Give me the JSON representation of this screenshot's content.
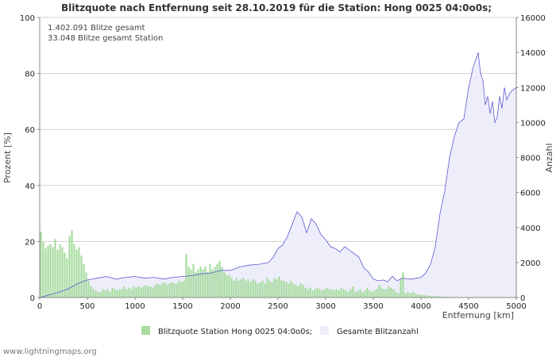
{
  "chart_data": {
    "type": "bar+area",
    "title": "Blitzquote nach Entfernung seit 28.10.2019 für die Station: Hong 0025 04:0o0s;",
    "info_lines": [
      "1.402.091 Blitze gesamt",
      "33.048 Blitze gesamt Station"
    ],
    "xlabel": "Entfernung   [km]",
    "ylabel_left": "Prozent   [%]",
    "ylabel_right": "Anzahl",
    "xlim": [
      0,
      5000
    ],
    "ylim_left": [
      0,
      100
    ],
    "ylim_right": [
      0,
      16000
    ],
    "x_ticks": [
      0,
      500,
      1000,
      1500,
      2000,
      2500,
      3000,
      3500,
      4000,
      4500,
      5000
    ],
    "y_left_ticks": [
      0,
      20,
      40,
      60,
      80,
      100
    ],
    "y_right_ticks": [
      0,
      2000,
      4000,
      6000,
      8000,
      10000,
      12000,
      14000,
      16000
    ],
    "bar_series": {
      "name": "Blitzquote Station Hong 0025 04:0o0s;",
      "color": "#a8dca0",
      "bin_km": 25,
      "values": [
        23.5,
        20,
        17.5,
        18.5,
        19,
        18,
        21,
        17,
        19,
        18,
        16,
        14,
        22,
        24,
        19,
        17,
        18,
        15,
        12,
        9,
        6,
        4,
        3,
        2.5,
        2,
        2,
        3,
        2.5,
        3,
        2,
        3.5,
        3,
        2.5,
        3,
        3,
        4,
        3,
        3.5,
        3,
        4,
        3.5,
        4,
        3.5,
        4,
        4.5,
        4,
        4,
        3.5,
        4.5,
        5,
        4.5,
        5,
        5.5,
        4.5,
        5,
        5.5,
        5,
        5,
        6,
        5.5,
        6,
        15.5,
        11,
        10,
        12,
        9,
        10,
        11,
        10,
        11,
        9,
        12,
        10,
        11,
        12,
        13,
        11,
        9,
        8,
        8,
        7,
        6,
        7,
        6,
        6.5,
        7,
        6,
        6.5,
        5.5,
        6.5,
        6,
        5,
        5.5,
        6,
        5,
        7,
        6,
        5.5,
        7,
        6.5,
        7.5,
        6,
        6,
        5.5,
        5,
        6,
        5,
        4.5,
        4,
        5,
        4.5,
        3.5,
        3,
        3.5,
        2.5,
        3,
        3.5,
        3,
        2.5,
        3,
        3.5,
        3,
        3,
        2.5,
        3,
        2.5,
        3.5,
        3,
        2.5,
        2,
        3,
        4,
        2,
        2.5,
        3,
        2,
        2.5,
        3.5,
        2.5,
        2,
        2.5,
        3,
        4.5,
        3.5,
        3,
        3,
        4,
        3.5,
        3,
        2,
        1.5,
        6.5,
        9,
        1.5,
        2,
        1.5,
        2,
        1.5,
        1.2,
        1,
        1,
        0.8,
        0.8,
        0.6,
        0.6,
        0.5,
        0.4,
        0.4,
        0.3,
        0.3,
        0.3,
        0.2,
        0.2,
        0.2,
        0.2,
        0.1,
        0.1,
        0.1,
        0.1,
        0.1,
        0.1,
        0.1,
        0.1,
        0.1,
        0.1,
        0.1,
        0.1,
        0.1,
        0.1,
        0.1,
        0.1,
        0.1,
        0.1,
        0.1,
        0.1,
        0.1,
        0.1,
        0.1,
        0.1
      ]
    },
    "area_series": {
      "name": "Gesamte Blitzanzahl",
      "fill": "#eeeefb",
      "line": "#5a5ad0",
      "x": [
        0,
        100,
        200,
        300,
        400,
        500,
        600,
        700,
        800,
        900,
        1000,
        1100,
        1200,
        1300,
        1400,
        1500,
        1600,
        1700,
        1800,
        1900,
        2000,
        2100,
        2200,
        2300,
        2400,
        2450,
        2500,
        2550,
        2600,
        2650,
        2700,
        2750,
        2800,
        2850,
        2900,
        2950,
        3000,
        3050,
        3100,
        3150,
        3200,
        3250,
        3300,
        3350,
        3400,
        3450,
        3500,
        3550,
        3600,
        3650,
        3700,
        3750,
        3800,
        3900,
        4000,
        4050,
        4100,
        4150,
        4200,
        4250,
        4300,
        4350,
        4400,
        4450,
        4500,
        4550,
        4600,
        4625,
        4650,
        4675,
        4700,
        4725,
        4750,
        4775,
        4800,
        4825,
        4850,
        4875,
        4900,
        4925,
        4950,
        5000
      ],
      "values": [
        0,
        150,
        300,
        500,
        800,
        1000,
        1100,
        1200,
        1050,
        1150,
        1200,
        1100,
        1150,
        1050,
        1150,
        1200,
        1250,
        1350,
        1400,
        1550,
        1550,
        1750,
        1850,
        1900,
        2000,
        2300,
        2800,
        3000,
        3500,
        4200,
        4900,
        4600,
        3700,
        4500,
        4200,
        3600,
        3300,
        2900,
        2800,
        2600,
        2900,
        2700,
        2500,
        2300,
        1700,
        1450,
        1050,
        950,
        1000,
        900,
        1200,
        950,
        1100,
        1050,
        1150,
        1400,
        1900,
        2900,
        4800,
        6100,
        8000,
        9200,
        10000,
        10200,
        12000,
        13200,
        14000,
        12800,
        12400,
        11000,
        11500,
        10500,
        11200,
        10000,
        10300,
        11500,
        10800,
        12000,
        11300,
        11600,
        11800,
        12000
      ]
    },
    "grid": true,
    "legend_position": "bottom"
  },
  "legend": {
    "bar_label": "Blitzquote Station Hong 0025 04:0o0s;",
    "area_label": "Gesamte Blitzanzahl"
  },
  "footer": {
    "credit": "www.lightningmaps.org"
  }
}
